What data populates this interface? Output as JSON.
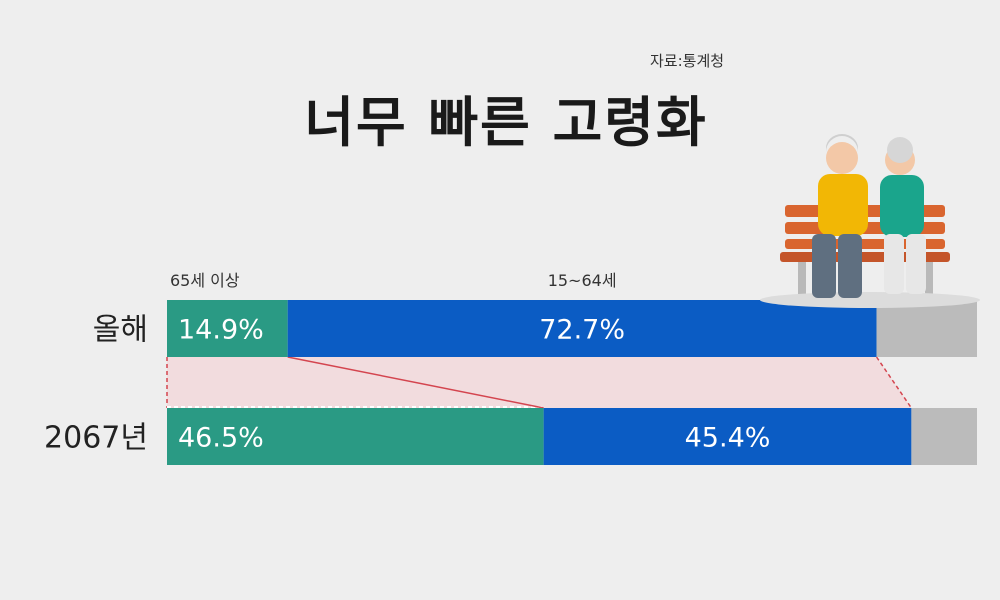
{
  "header": {
    "source": "자료:통계청",
    "title": "너무 빠른 고령화"
  },
  "colors": {
    "elderly": "#2a9a84",
    "working": "#0b5cc4",
    "other": "#bbbbbb",
    "connector_fill": "#f2d8da",
    "connector_line": "#d4454f"
  },
  "chart_data": {
    "type": "bar",
    "orientation": "horizontal",
    "stacked": true,
    "categories": [
      "올해",
      "2067년"
    ],
    "series": [
      {
        "name": "65세 이상",
        "values": [
          14.9,
          46.5
        ],
        "labels": [
          "14.9%",
          "46.5%"
        ]
      },
      {
        "name": "15~64세",
        "values": [
          72.7,
          45.4
        ],
        "labels": [
          "72.7%",
          "45.4%"
        ]
      },
      {
        "name": "",
        "values": [
          12.4,
          8.1
        ]
      }
    ],
    "xlim": [
      0,
      100
    ]
  }
}
